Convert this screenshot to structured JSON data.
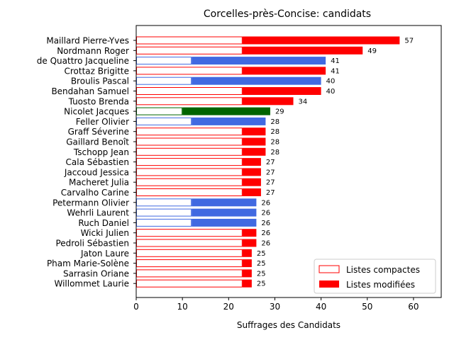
{
  "chart_data": {
    "type": "bar",
    "orientation": "horizontal",
    "title": "Corcelles-près-Concise: candidats",
    "xlabel": "Suffrages des Candidats",
    "ylabel": "",
    "xlim": [
      0,
      66
    ],
    "xticks": [
      0,
      10,
      20,
      30,
      40,
      50,
      60
    ],
    "legend_position": "lower-right",
    "legend": [
      {
        "label": "Listes compactes",
        "style": "outline",
        "color": "#ff0000"
      },
      {
        "label": "Listes modifiées",
        "style": "filled",
        "color": "#ff0000"
      }
    ],
    "candidates": [
      {
        "name": "Maillard Pierre-Yves",
        "total": 57,
        "compact": 23,
        "color": "#ff0000"
      },
      {
        "name": "Nordmann Roger",
        "total": 49,
        "compact": 23,
        "color": "#ff0000"
      },
      {
        "name": "de Quattro Jacqueline",
        "total": 41,
        "compact": 12,
        "color": "#4169e1"
      },
      {
        "name": "Crottaz Brigitte",
        "total": 41,
        "compact": 23,
        "color": "#ff0000"
      },
      {
        "name": "Broulis Pascal",
        "total": 40,
        "compact": 12,
        "color": "#4169e1"
      },
      {
        "name": "Bendahan Samuel",
        "total": 40,
        "compact": 23,
        "color": "#ff0000"
      },
      {
        "name": "Tuosto Brenda",
        "total": 34,
        "compact": 23,
        "color": "#ff0000"
      },
      {
        "name": "Nicolet Jacques",
        "total": 29,
        "compact": 10,
        "color": "#006400"
      },
      {
        "name": "Feller Olivier",
        "total": 28,
        "compact": 12,
        "color": "#4169e1"
      },
      {
        "name": "Graff Séverine",
        "total": 28,
        "compact": 23,
        "color": "#ff0000"
      },
      {
        "name": "Gaillard Benoît",
        "total": 28,
        "compact": 23,
        "color": "#ff0000"
      },
      {
        "name": "Tschopp Jean",
        "total": 28,
        "compact": 23,
        "color": "#ff0000"
      },
      {
        "name": "Cala Sébastien",
        "total": 27,
        "compact": 23,
        "color": "#ff0000"
      },
      {
        "name": "Jaccoud Jessica",
        "total": 27,
        "compact": 23,
        "color": "#ff0000"
      },
      {
        "name": "Macheret Julia",
        "total": 27,
        "compact": 23,
        "color": "#ff0000"
      },
      {
        "name": "Carvalho Carine",
        "total": 27,
        "compact": 23,
        "color": "#ff0000"
      },
      {
        "name": "Petermann Olivier",
        "total": 26,
        "compact": 12,
        "color": "#4169e1"
      },
      {
        "name": "Wehrli Laurent",
        "total": 26,
        "compact": 12,
        "color": "#4169e1"
      },
      {
        "name": "Ruch Daniel",
        "total": 26,
        "compact": 12,
        "color": "#4169e1"
      },
      {
        "name": "Wicki Julien",
        "total": 26,
        "compact": 23,
        "color": "#ff0000"
      },
      {
        "name": "Pedroli Sébastien",
        "total": 26,
        "compact": 23,
        "color": "#ff0000"
      },
      {
        "name": "Jaton Laure",
        "total": 25,
        "compact": 23,
        "color": "#ff0000"
      },
      {
        "name": "Pham Marie-Solène",
        "total": 25,
        "compact": 23,
        "color": "#ff0000"
      },
      {
        "name": "Sarrasin Oriane",
        "total": 25,
        "compact": 23,
        "color": "#ff0000"
      },
      {
        "name": "Willommet Laurie",
        "total": 25,
        "compact": 23,
        "color": "#ff0000"
      }
    ]
  }
}
